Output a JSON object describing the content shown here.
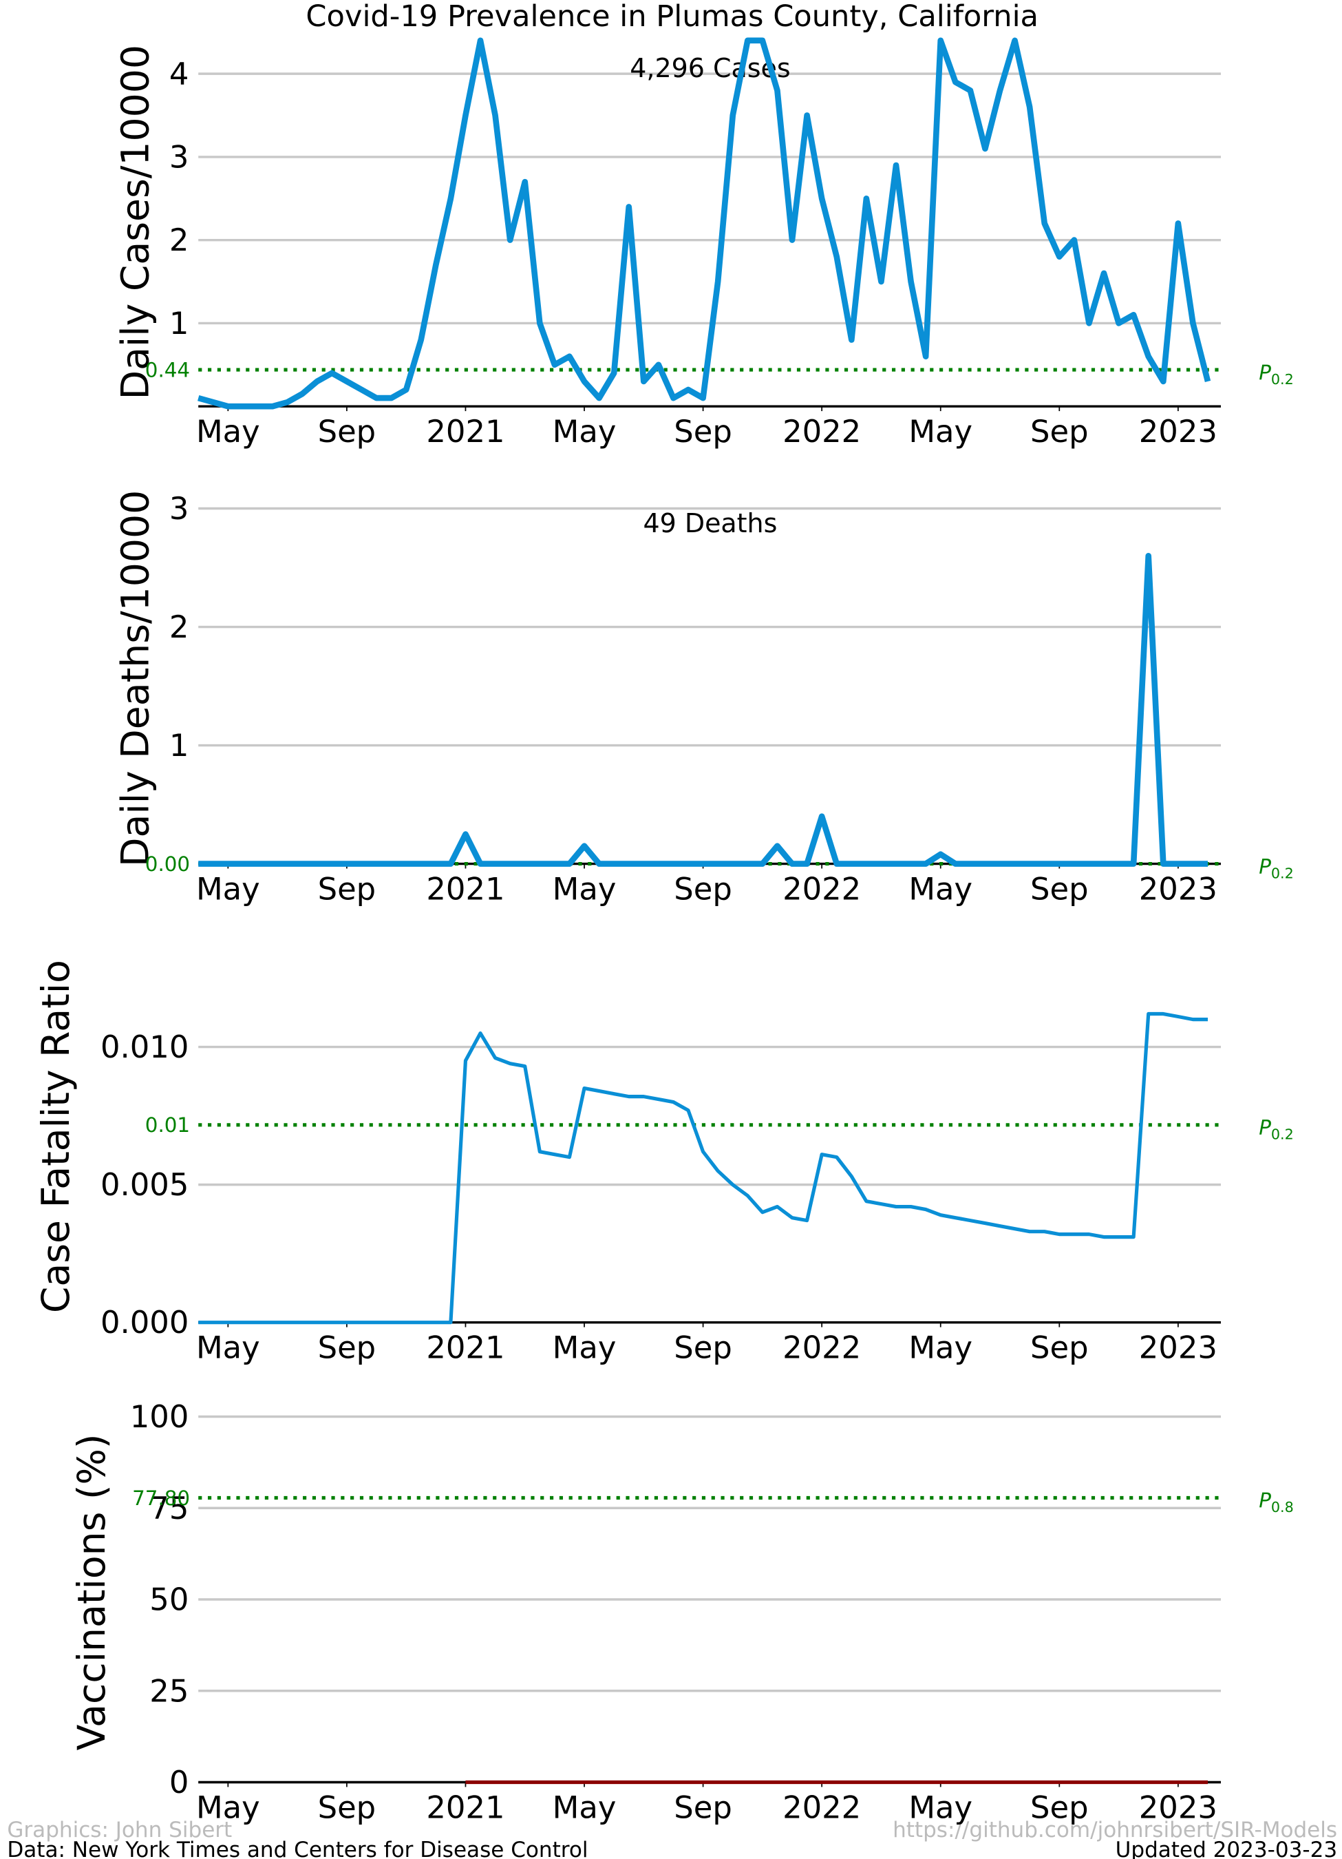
{
  "title": "Covid-19 Prevalence in Plumas County, California",
  "footer": {
    "left1": "Graphics: John Sibert",
    "left2": "Data: New York Times and Centers for Disease Control",
    "right1": "https://github.com/johnrsibert/SIR-Models",
    "right2": "Updated 2023-03-23"
  },
  "chart_data": [
    {
      "type": "line",
      "ylabel": "Daily Cases/10000",
      "annotation": "4,296 Cases",
      "color": "#0a8fd6",
      "xlim": [
        3.0,
        37.44
      ],
      "ylim": [
        0,
        4.43
      ],
      "yticks": [
        1,
        2,
        3,
        4
      ],
      "xticks": [
        {
          "value": 4,
          "label": "May"
        },
        {
          "value": 8,
          "label": "Sep"
        },
        {
          "value": 12,
          "label": "2021"
        },
        {
          "value": 16,
          "label": "May"
        },
        {
          "value": 20,
          "label": "Sep"
        },
        {
          "value": 24,
          "label": "2022"
        },
        {
          "value": 28,
          "label": "May"
        },
        {
          "value": 32,
          "label": "Sep"
        },
        {
          "value": 36,
          "label": "2023"
        }
      ],
      "hline": {
        "value": 0.44,
        "label": "0.44",
        "tag": {
          "symbol": "P",
          "subscript": "0.2"
        },
        "color": "#008000"
      },
      "x": [
        3,
        3.5,
        4,
        4.5,
        5,
        5.5,
        6,
        6.5,
        7,
        7.5,
        8,
        8.5,
        9,
        9.5,
        10,
        10.5,
        11,
        11.5,
        12,
        12.5,
        13,
        13.5,
        14,
        14.5,
        15,
        15.5,
        16,
        16.5,
        17,
        17.5,
        18,
        18.5,
        19,
        19.5,
        20,
        20.5,
        21,
        21.5,
        22,
        22.5,
        23,
        23.5,
        24,
        24.5,
        25,
        25.5,
        26,
        26.5,
        27,
        27.5,
        28,
        28.5,
        29,
        29.5,
        30,
        30.5,
        31,
        31.5,
        32,
        32.5,
        33,
        33.5,
        34,
        34.5,
        35,
        35.5,
        36,
        36.5,
        37
      ],
      "values": [
        0.1,
        0.05,
        0,
        0,
        0,
        0,
        0.05,
        0.15,
        0.3,
        0.4,
        0.3,
        0.2,
        0.1,
        0.1,
        0.2,
        0.8,
        1.7,
        2.5,
        3.5,
        4.4,
        3.5,
        2.0,
        2.7,
        1.0,
        0.5,
        0.6,
        0.3,
        0.1,
        0.4,
        2.4,
        0.3,
        0.5,
        0.1,
        0.2,
        0.1,
        1.5,
        3.5,
        4.4,
        4.4,
        3.8,
        2.0,
        3.5,
        2.5,
        1.8,
        0.8,
        2.5,
        1.5,
        2.9,
        1.5,
        0.6,
        4.4,
        3.9,
        3.8,
        3.1,
        3.8,
        4.4,
        3.6,
        2.2,
        1.8,
        2.0,
        1.0,
        1.6,
        1.0,
        1.1,
        0.6,
        0.3,
        2.2,
        1.0,
        0.3
      ]
    },
    {
      "type": "line",
      "ylabel": "Daily Deaths/10000",
      "annotation": "49 Deaths",
      "color": "#0a8fd6",
      "xlim": [
        3.0,
        37.44
      ],
      "ylim": [
        0,
        3.13
      ],
      "yticks": [
        1,
        2,
        3
      ],
      "xticks": [
        {
          "value": 4,
          "label": "May"
        },
        {
          "value": 8,
          "label": "Sep"
        },
        {
          "value": 12,
          "label": "2021"
        },
        {
          "value": 16,
          "label": "May"
        },
        {
          "value": 20,
          "label": "Sep"
        },
        {
          "value": 24,
          "label": "2022"
        },
        {
          "value": 28,
          "label": "May"
        },
        {
          "value": 32,
          "label": "Sep"
        },
        {
          "value": 36,
          "label": "2023"
        }
      ],
      "hline": {
        "value": 0,
        "label": "0.00",
        "tag": {
          "symbol": "P",
          "subscript": "0.2"
        },
        "color": "#008000"
      },
      "x": [
        3,
        3.5,
        4,
        4.5,
        5,
        5.5,
        6,
        6.5,
        7,
        7.5,
        8,
        8.5,
        9,
        9.5,
        10,
        10.5,
        11,
        11.5,
        12,
        12.5,
        13,
        13.5,
        14,
        14.5,
        15,
        15.5,
        16,
        16.5,
        17,
        17.5,
        18,
        18.5,
        19,
        19.5,
        20,
        20.5,
        21,
        21.5,
        22,
        22.5,
        23,
        23.5,
        24,
        24.5,
        25,
        25.5,
        26,
        26.5,
        27,
        27.5,
        28,
        28.5,
        29,
        29.5,
        30,
        30.5,
        31,
        31.5,
        32,
        32.5,
        33,
        33.5,
        34,
        34.5,
        35,
        35.5,
        36,
        36.5,
        37
      ],
      "values": [
        0,
        0,
        0,
        0,
        0,
        0,
        0,
        0,
        0,
        0,
        0,
        0,
        0,
        0,
        0,
        0,
        0,
        0,
        0.25,
        0,
        0,
        0,
        0,
        0,
        0,
        0,
        0.15,
        0,
        0,
        0,
        0,
        0,
        0,
        0,
        0,
        0,
        0,
        0,
        0,
        0.15,
        0,
        0,
        0.4,
        0,
        0,
        0,
        0,
        0,
        0,
        0,
        0.08,
        0,
        0,
        0,
        0,
        0,
        0,
        0,
        0,
        0,
        0,
        0,
        0,
        0,
        2.6,
        0,
        0,
        0,
        0
      ]
    },
    {
      "type": "line",
      "ylabel": "Case Fatality Ratio",
      "color": "#0a8fd6",
      "xlim": [
        3.0,
        37.44
      ],
      "ylim": [
        0,
        0.0135
      ],
      "yticks": [
        {
          "value": 0,
          "label": "0.000"
        },
        0.005,
        {
          "value": 0.01,
          "label": "0.010"
        }
      ],
      "xticks": [
        {
          "value": 4,
          "label": "May"
        },
        {
          "value": 8,
          "label": "Sep"
        },
        {
          "value": 12,
          "label": "2021"
        },
        {
          "value": 16,
          "label": "May"
        },
        {
          "value": 20,
          "label": "Sep"
        },
        {
          "value": 24,
          "label": "2022"
        },
        {
          "value": 28,
          "label": "May"
        },
        {
          "value": 32,
          "label": "Sep"
        },
        {
          "value": 36,
          "label": "2023"
        }
      ],
      "hline": {
        "value": 0.00717,
        "label": "0.01",
        "tag": {
          "symbol": "P",
          "subscript": "0.2"
        },
        "color": "#008000"
      },
      "x": [
        3,
        3.5,
        4,
        4.5,
        5,
        5.5,
        6,
        6.5,
        7,
        7.5,
        8,
        8.5,
        9,
        9.5,
        10,
        10.5,
        11,
        11.5,
        12,
        12.5,
        13,
        13.5,
        14,
        14.5,
        15,
        15.5,
        16,
        16.5,
        17,
        17.5,
        18,
        18.5,
        19,
        19.5,
        20,
        20.5,
        21,
        21.5,
        22,
        22.5,
        23,
        23.5,
        24,
        24.5,
        25,
        25.5,
        26,
        26.5,
        27,
        27.5,
        28,
        28.5,
        29,
        29.5,
        30,
        30.5,
        31,
        31.5,
        32,
        32.5,
        33,
        33.5,
        34,
        34.5,
        35,
        35.5,
        36,
        36.5,
        37
      ],
      "values": [
        0,
        0,
        0,
        0,
        0,
        0,
        0,
        0,
        0,
        0,
        0,
        0,
        0,
        0,
        0,
        0,
        0,
        0,
        0.0095,
        0.0105,
        0.0096,
        0.0094,
        0.0093,
        0.0062,
        0.0061,
        0.006,
        0.0085,
        0.0084,
        0.0083,
        0.0082,
        0.0082,
        0.0081,
        0.008,
        0.0077,
        0.0062,
        0.0055,
        0.005,
        0.0046,
        0.004,
        0.0042,
        0.0038,
        0.0037,
        0.0061,
        0.006,
        0.0053,
        0.0044,
        0.0043,
        0.0042,
        0.0042,
        0.0041,
        0.0039,
        0.0038,
        0.0037,
        0.0036,
        0.0035,
        0.0034,
        0.0033,
        0.0033,
        0.0032,
        0.0032,
        0.0032,
        0.0031,
        0.0031,
        0.0031,
        0.0112,
        0.0112,
        0.0111,
        0.011,
        0.011
      ]
    },
    {
      "type": "line",
      "ylabel": "Vaccinations (%)",
      "color": "#8b0000",
      "xlim": [
        3.0,
        37.44
      ],
      "ylim": [
        0,
        104
      ],
      "yticks": [
        0,
        25,
        50,
        75,
        100
      ],
      "xticks": [
        {
          "value": 4,
          "label": "May"
        },
        {
          "value": 8,
          "label": "Sep"
        },
        {
          "value": 12,
          "label": "2021"
        },
        {
          "value": 16,
          "label": "May"
        },
        {
          "value": 20,
          "label": "Sep"
        },
        {
          "value": 24,
          "label": "2022"
        },
        {
          "value": 28,
          "label": "May"
        },
        {
          "value": 32,
          "label": "Sep"
        },
        {
          "value": 36,
          "label": "2023"
        }
      ],
      "hline": {
        "value": 77.8,
        "label": "77.80",
        "tag": {
          "symbol": "P",
          "subscript": "0.8"
        },
        "color": "#008000"
      },
      "x": [
        12,
        37
      ],
      "values": [
        0,
        0
      ]
    }
  ]
}
